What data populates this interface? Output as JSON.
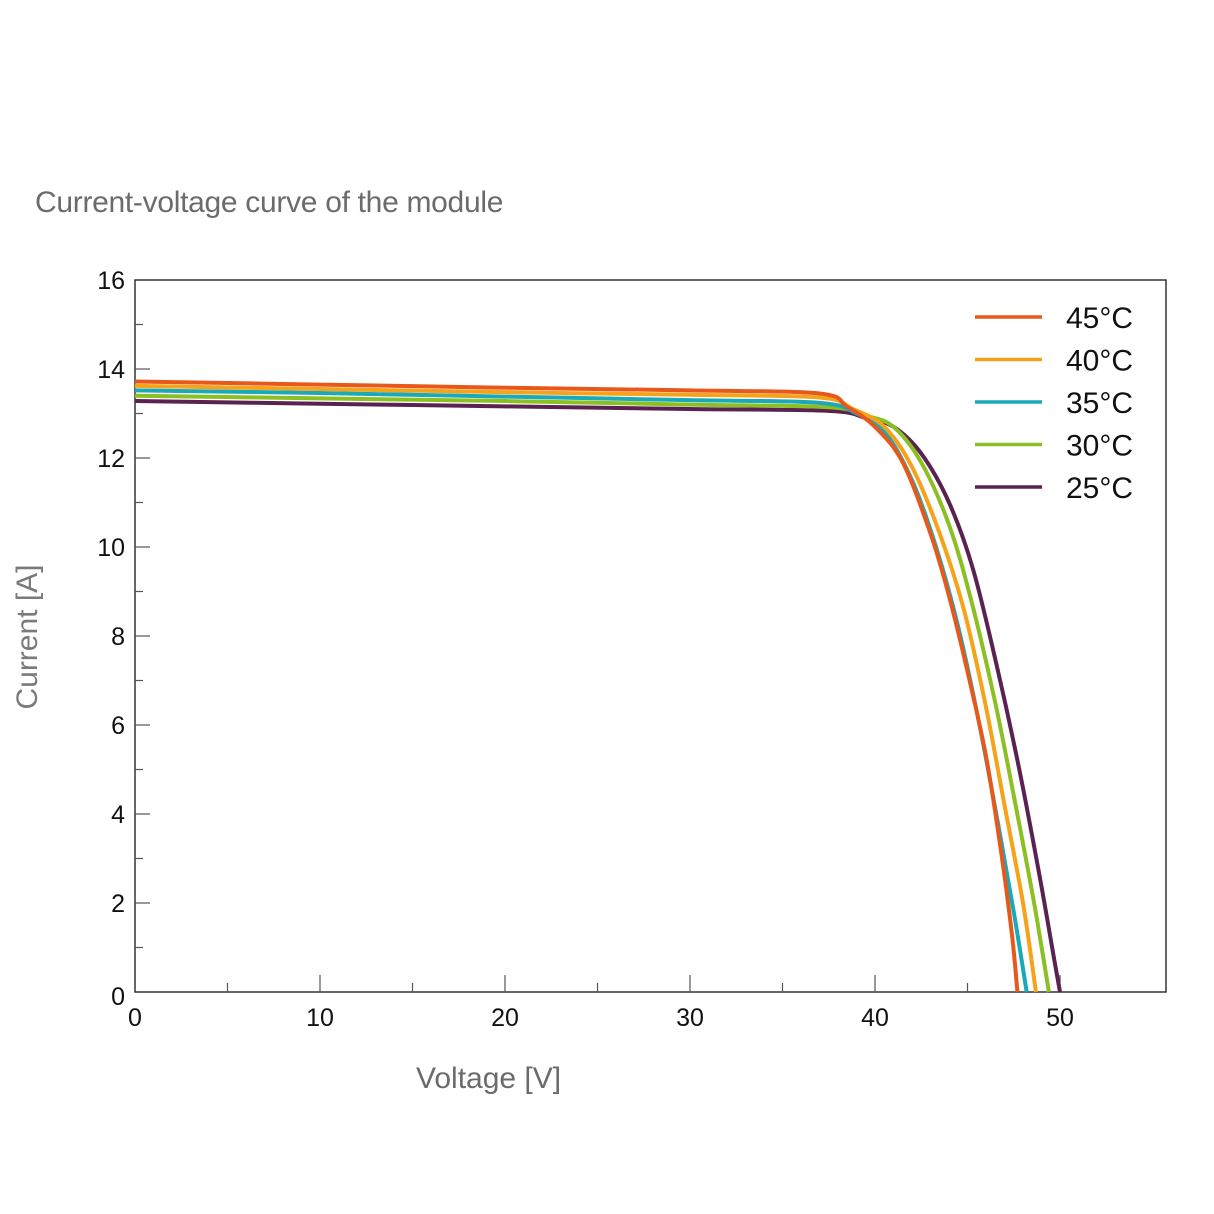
{
  "chart_data": {
    "type": "line",
    "title": "Current-voltage curve of the module",
    "xlabel": "Voltage [V]",
    "ylabel": "Current [A]",
    "xlim": [
      0,
      55.4
    ],
    "ylim": [
      0,
      16
    ],
    "x_ticks": [
      0,
      10,
      20,
      30,
      40,
      50
    ],
    "x_minor_ticks": [
      5,
      15,
      25,
      35,
      45
    ],
    "y_ticks": [
      0,
      2,
      4,
      6,
      8,
      10,
      12,
      14,
      16
    ],
    "y_minor_ticks": [
      1,
      3,
      5,
      7,
      9,
      11,
      13,
      15
    ],
    "grid": false,
    "legend_position": "upper right",
    "series": [
      {
        "name": "45°C",
        "color": "#e8581a",
        "points": [
          [
            0,
            13.72
          ],
          [
            10,
            13.65
          ],
          [
            20,
            13.58
          ],
          [
            30,
            13.52
          ],
          [
            37,
            13.45
          ],
          [
            38.5,
            13.15
          ],
          [
            40,
            12.7
          ],
          [
            41.5,
            11.9
          ],
          [
            43,
            10.3
          ],
          [
            44,
            8.9
          ],
          [
            45,
            7.2
          ],
          [
            46,
            5.3
          ],
          [
            46.8,
            3.2
          ],
          [
            47.4,
            1.3
          ],
          [
            47.7,
            0
          ]
        ]
      },
      {
        "name": "40°C",
        "color": "#f5a31a",
        "points": [
          [
            0,
            13.62
          ],
          [
            10,
            13.55
          ],
          [
            20,
            13.48
          ],
          [
            30,
            13.42
          ],
          [
            37,
            13.36
          ],
          [
            38.8,
            13.1
          ],
          [
            40.5,
            12.7
          ],
          [
            42,
            11.8
          ],
          [
            43.5,
            10.3
          ],
          [
            44.8,
            8.6
          ],
          [
            46,
            6.4
          ],
          [
            47,
            4.2
          ],
          [
            48,
            2.0
          ],
          [
            48.7,
            0
          ]
        ]
      },
      {
        "name": "35°C",
        "color": "#1aa9b8",
        "points": [
          [
            0,
            13.52
          ],
          [
            10,
            13.46
          ],
          [
            20,
            13.38
          ],
          [
            30,
            13.3
          ],
          [
            37,
            13.24
          ],
          [
            39,
            13.0
          ],
          [
            40.5,
            12.6
          ],
          [
            42,
            11.5
          ],
          [
            43.3,
            10.0
          ],
          [
            44.5,
            8.2
          ],
          [
            45.6,
            6.1
          ],
          [
            46.6,
            3.9
          ],
          [
            47.5,
            1.8
          ],
          [
            48.2,
            0
          ]
        ]
      },
      {
        "name": "30°C",
        "color": "#8bbf22",
        "points": [
          [
            0,
            13.4
          ],
          [
            10,
            13.34
          ],
          [
            20,
            13.28
          ],
          [
            30,
            13.2
          ],
          [
            37.5,
            13.14
          ],
          [
            39.5,
            12.95
          ],
          [
            41,
            12.7
          ],
          [
            42.5,
            11.9
          ],
          [
            44,
            10.5
          ],
          [
            45.2,
            8.8
          ],
          [
            46.5,
            6.5
          ],
          [
            47.6,
            4.2
          ],
          [
            48.6,
            2.0
          ],
          [
            49.4,
            0
          ]
        ]
      },
      {
        "name": "25°C",
        "color": "#5a2252",
        "points": [
          [
            0,
            13.28
          ],
          [
            10,
            13.22
          ],
          [
            20,
            13.16
          ],
          [
            30,
            13.1
          ],
          [
            37.5,
            13.06
          ],
          [
            39.5,
            12.9
          ],
          [
            41,
            12.7
          ],
          [
            42.5,
            12.1
          ],
          [
            44,
            11.0
          ],
          [
            45.3,
            9.5
          ],
          [
            46.6,
            7.3
          ],
          [
            47.8,
            5.0
          ],
          [
            48.9,
            2.6
          ],
          [
            49.7,
            0.7
          ],
          [
            50.0,
            0
          ]
        ]
      }
    ]
  },
  "axis_tick_labels": {
    "x": [
      "0",
      "10",
      "20",
      "30",
      "40",
      "50"
    ],
    "y": [
      "0",
      "2",
      "4",
      "6",
      "8",
      "10",
      "12",
      "14",
      "16"
    ]
  }
}
